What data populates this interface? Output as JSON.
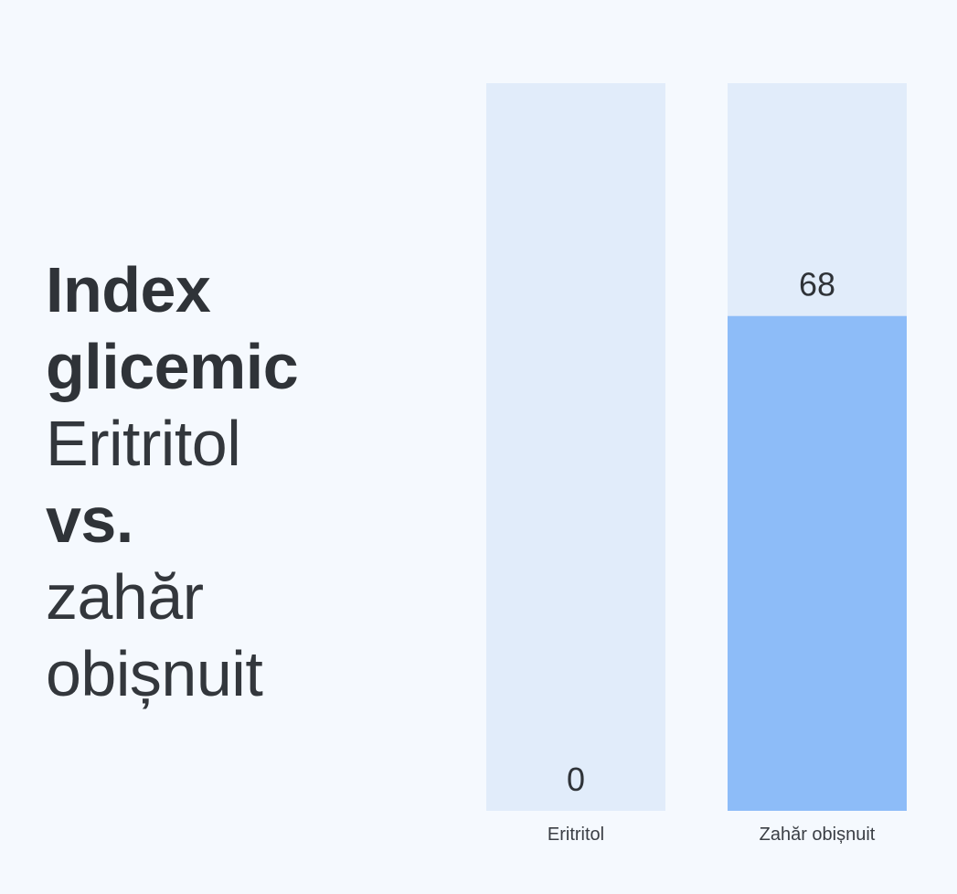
{
  "title": {
    "line1": "Index",
    "line2": "glicemic",
    "line3": "Eritritol",
    "line4": "vs.",
    "line5": "zahăr",
    "line6": "obișnuit"
  },
  "colors": {
    "track": "#e1ecfa",
    "fill": "#8dbcf8",
    "background": "#f5f9fe"
  },
  "chart_data": {
    "type": "bar",
    "categories": [
      "Eritritol",
      "Zahăr obișnuit"
    ],
    "values": [
      0,
      68
    ],
    "value_labels": [
      "0",
      "68"
    ],
    "ylim": [
      0,
      100
    ],
    "grid": false,
    "legend": "none"
  }
}
